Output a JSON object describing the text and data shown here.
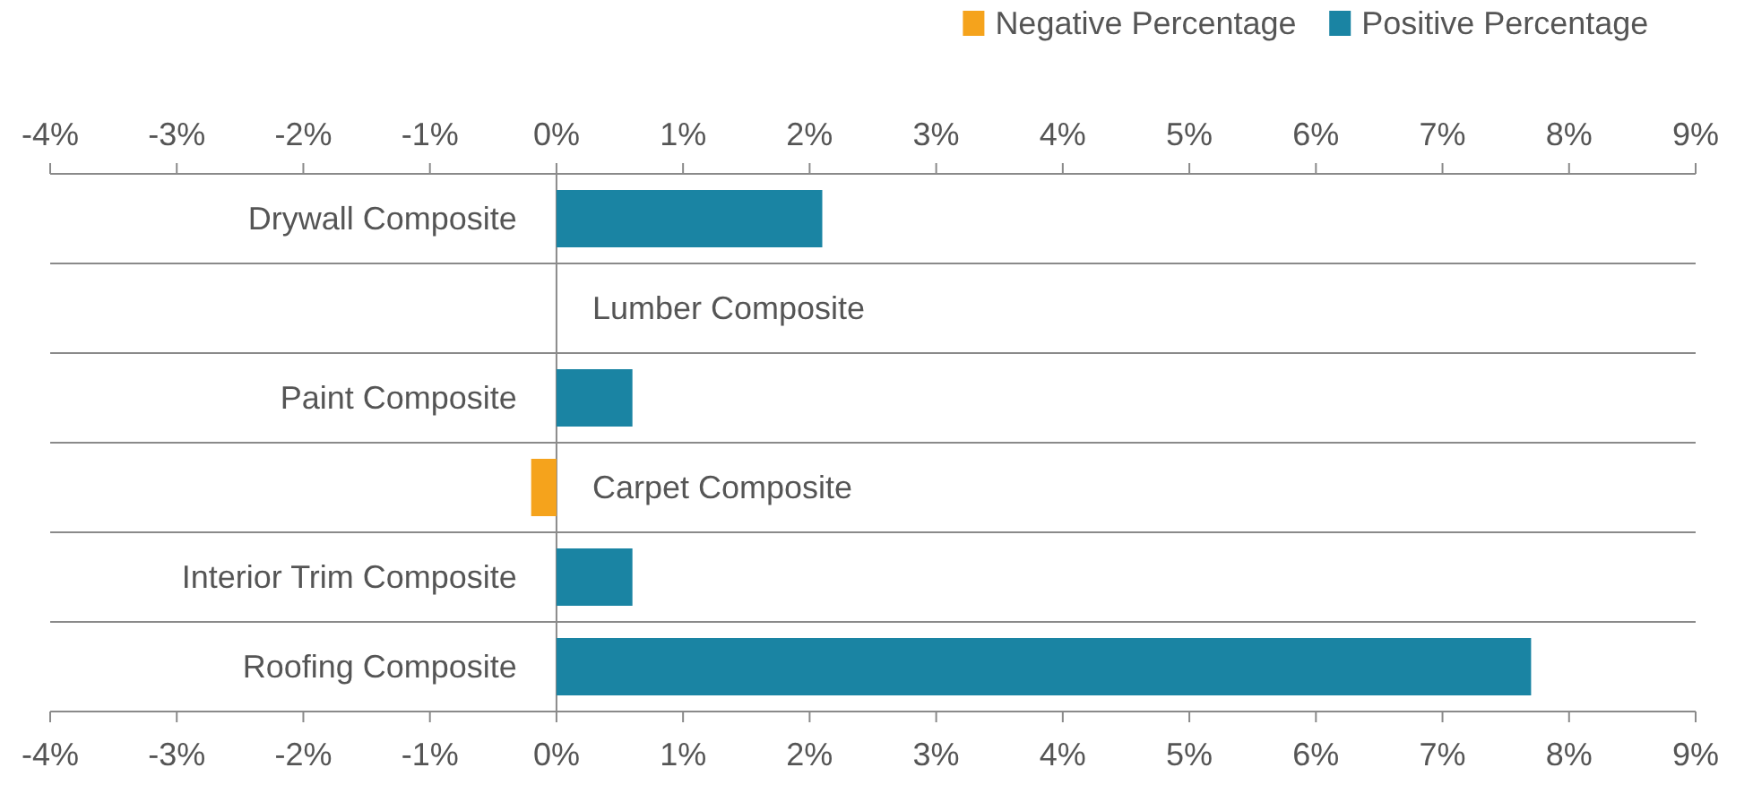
{
  "chart_data": {
    "type": "bar",
    "orientation": "horizontal",
    "stacked": true,
    "categories": [
      "Drywall Composite",
      "Lumber Composite",
      "Paint Composite",
      "Carpet Composite",
      "Interior Trim Composite",
      "Roofing Composite"
    ],
    "series": [
      {
        "name": "Negative Percentage",
        "color": "#f5a31c",
        "values": [
          null,
          null,
          null,
          -0.2,
          null,
          null
        ]
      },
      {
        "name": "Positive Percentage",
        "color": "#1a84a3",
        "values": [
          2.1,
          0,
          0.6,
          null,
          0.6,
          7.7
        ]
      }
    ],
    "xlim": [
      -4,
      9
    ],
    "xticks": [
      {
        "value": -4,
        "label": "-4%"
      },
      {
        "value": -3,
        "label": "-3%"
      },
      {
        "value": -2,
        "label": "-2%"
      },
      {
        "value": -1,
        "label": "-1%"
      },
      {
        "value": 0,
        "label": "0%"
      },
      {
        "value": 1,
        "label": "1%"
      },
      {
        "value": 2,
        "label": "2%"
      },
      {
        "value": 3,
        "label": "3%"
      },
      {
        "value": 4,
        "label": "4%"
      },
      {
        "value": 5,
        "label": "5%"
      },
      {
        "value": 6,
        "label": "6%"
      },
      {
        "value": 7,
        "label": "7%"
      },
      {
        "value": 8,
        "label": "8%"
      },
      {
        "value": 9,
        "label": "9%"
      }
    ],
    "x2lim": [
      -4,
      9
    ],
    "x2ticks": [
      {
        "value": -4,
        "label": "-4%"
      },
      {
        "value": -3,
        "label": "-3%"
      },
      {
        "value": -2,
        "label": "-2%"
      },
      {
        "value": -1,
        "label": "-1%"
      },
      {
        "value": 0,
        "label": "0%"
      },
      {
        "value": 1,
        "label": "1%"
      },
      {
        "value": 2,
        "label": "2%"
      },
      {
        "value": 3,
        "label": "3%"
      },
      {
        "value": 4,
        "label": "4%"
      },
      {
        "value": 5,
        "label": "5%"
      },
      {
        "value": 6,
        "label": "6%"
      },
      {
        "value": 7,
        "label": "7%"
      },
      {
        "value": 8,
        "label": "8%"
      },
      {
        "value": 9,
        "label": "9%"
      }
    ],
    "grid": false,
    "legend": "top right"
  }
}
